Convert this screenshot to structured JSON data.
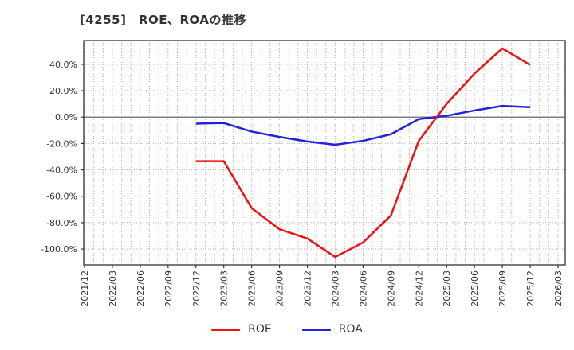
{
  "title": "[4255]　ROE、ROAの推移",
  "chart_data": {
    "type": "line",
    "title": "[4255]　ROE、ROAの推移",
    "xlabel": "",
    "ylabel": "",
    "grid": true,
    "legend_position": "bottom-center",
    "ylim": [
      -112,
      58
    ],
    "yticks": [
      {
        "v": 40,
        "label": "40.0%"
      },
      {
        "v": 20,
        "label": "20.0%"
      },
      {
        "v": 0,
        "label": "0.0%"
      },
      {
        "v": -20,
        "label": "-20.0%"
      },
      {
        "v": -40,
        "label": "-40.0%"
      },
      {
        "v": -60,
        "label": "-60.0%"
      },
      {
        "v": -80,
        "label": "-80.0%"
      },
      {
        "v": -100,
        "label": "-100.0%"
      }
    ],
    "x_labels": [
      "2021/12",
      "2022/03",
      "2022/06",
      "2022/09",
      "2022/12",
      "2023/03",
      "2023/06",
      "2023/09",
      "2023/12",
      "2024/03",
      "2024/06",
      "2024/09",
      "2024/12",
      "2025/03",
      "2025/06",
      "2025/09",
      "2025/12",
      "2026/03"
    ],
    "series": [
      {
        "name": "ROE",
        "color": "#ee1111",
        "points": [
          [
            "2022/12",
            -33.4
          ],
          [
            "2023/03",
            -33.4
          ],
          [
            "2023/06",
            -69.0
          ],
          [
            "2023/09",
            -85.0
          ],
          [
            "2023/12",
            -92.0
          ],
          [
            "2024/03",
            -106.0
          ],
          [
            "2024/06",
            -95.0
          ],
          [
            "2024/09",
            -74.5
          ],
          [
            "2024/12",
            -18.0
          ],
          [
            "2025/03",
            10.0
          ],
          [
            "2025/06",
            33.0
          ],
          [
            "2025/09",
            52.0
          ],
          [
            "2025/12",
            39.5
          ]
        ]
      },
      {
        "name": "ROA",
        "color": "#2222dd",
        "points": [
          [
            "2022/12",
            -5.0
          ],
          [
            "2023/03",
            -4.5
          ],
          [
            "2023/06",
            -11.0
          ],
          [
            "2023/09",
            -15.0
          ],
          [
            "2023/12",
            -18.5
          ],
          [
            "2024/03",
            -21.0
          ],
          [
            "2024/06",
            -18.0
          ],
          [
            "2024/09",
            -13.0
          ],
          [
            "2024/12",
            -1.5
          ],
          [
            "2025/03",
            1.0
          ],
          [
            "2025/06",
            5.0
          ],
          [
            "2025/09",
            8.5
          ],
          [
            "2025/12",
            7.5
          ]
        ]
      }
    ],
    "colors": {
      "frame": "#333333",
      "gridline": "#b3b3b3",
      "zero_line": "#555555",
      "tick_text": "#333333"
    }
  }
}
